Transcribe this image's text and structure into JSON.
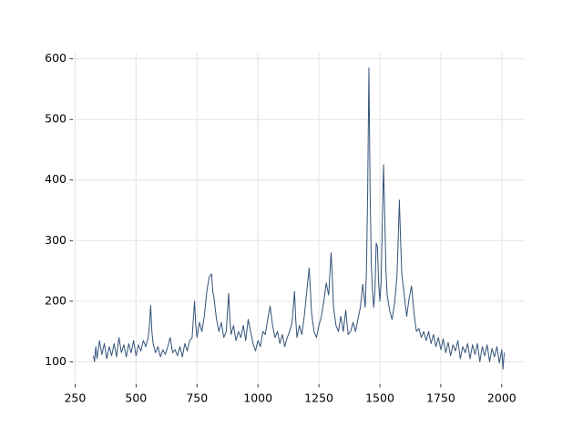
{
  "chart_data": {
    "type": "line",
    "x": [
      325,
      330,
      335,
      340,
      350,
      360,
      370,
      380,
      390,
      400,
      410,
      420,
      430,
      440,
      450,
      460,
      470,
      480,
      490,
      500,
      510,
      520,
      530,
      540,
      550,
      555,
      560,
      565,
      570,
      580,
      590,
      600,
      610,
      620,
      630,
      640,
      650,
      660,
      670,
      680,
      690,
      700,
      710,
      720,
      730,
      740,
      745,
      750,
      760,
      770,
      780,
      790,
      800,
      810,
      815,
      820,
      830,
      840,
      850,
      860,
      870,
      880,
      885,
      890,
      900,
      910,
      920,
      930,
      940,
      950,
      960,
      970,
      980,
      990,
      1000,
      1010,
      1020,
      1030,
      1040,
      1050,
      1060,
      1070,
      1080,
      1090,
      1100,
      1110,
      1120,
      1130,
      1140,
      1150,
      1155,
      1160,
      1170,
      1180,
      1190,
      1200,
      1210,
      1215,
      1220,
      1230,
      1240,
      1250,
      1260,
      1270,
      1280,
      1290,
      1300,
      1305,
      1310,
      1320,
      1330,
      1340,
      1350,
      1360,
      1370,
      1380,
      1390,
      1400,
      1410,
      1420,
      1430,
      1440,
      1445,
      1450,
      1455,
      1460,
      1465,
      1470,
      1475,
      1480,
      1485,
      1490,
      1495,
      1500,
      1505,
      1510,
      1515,
      1520,
      1525,
      1530,
      1540,
      1550,
      1560,
      1570,
      1575,
      1580,
      1585,
      1590,
      1600,
      1610,
      1620,
      1630,
      1640,
      1650,
      1660,
      1670,
      1680,
      1690,
      1700,
      1710,
      1720,
      1730,
      1740,
      1750,
      1760,
      1770,
      1780,
      1790,
      1800,
      1810,
      1820,
      1830,
      1840,
      1850,
      1860,
      1870,
      1880,
      1890,
      1900,
      1910,
      1920,
      1930,
      1940,
      1950,
      1960,
      1970,
      1980,
      1990,
      2000,
      2005,
      2010
    ],
    "series": [
      {
        "color": "#34537a",
        "values": [
          110,
          100,
          125,
          105,
          135,
          112,
          130,
          105,
          125,
          110,
          130,
          108,
          140,
          115,
          128,
          108,
          130,
          115,
          135,
          110,
          128,
          118,
          135,
          125,
          140,
          160,
          193,
          150,
          130,
          115,
          125,
          108,
          120,
          112,
          125,
          140,
          115,
          120,
          110,
          125,
          108,
          130,
          118,
          135,
          140,
          200,
          160,
          140,
          165,
          150,
          175,
          215,
          240,
          245,
          215,
          205,
          170,
          150,
          165,
          140,
          150,
          213,
          170,
          145,
          160,
          135,
          150,
          140,
          160,
          135,
          170,
          150,
          130,
          118,
          135,
          125,
          150,
          145,
          170,
          192,
          160,
          140,
          150,
          130,
          145,
          125,
          140,
          150,
          165,
          216,
          170,
          140,
          160,
          145,
          175,
          215,
          255,
          220,
          180,
          150,
          140,
          160,
          175,
          200,
          230,
          210,
          280,
          240,
          190,
          160,
          150,
          175,
          150,
          185,
          145,
          150,
          165,
          150,
          170,
          190,
          228,
          190,
          250,
          380,
          585,
          380,
          260,
          215,
          190,
          220,
          296,
          290,
          230,
          200,
          230,
          330,
          425,
          340,
          250,
          210,
          185,
          170,
          195,
          240,
          300,
          367,
          300,
          245,
          210,
          175,
          205,
          225,
          180,
          150,
          155,
          140,
          150,
          135,
          150,
          130,
          145,
          125,
          140,
          120,
          138,
          115,
          132,
          110,
          128,
          118,
          135,
          105,
          125,
          115,
          130,
          105,
          128,
          112,
          130,
          100,
          125,
          110,
          128,
          100,
          122,
          108,
          125,
          98,
          120,
          88,
          115
        ]
      }
    ],
    "xlim": [
      241,
      2094
    ],
    "ylim": [
      63,
      610
    ],
    "xticks": [
      250,
      500,
      750,
      1000,
      1250,
      1500,
      1750,
      2000
    ],
    "yticks": [
      100,
      200,
      300,
      400,
      500,
      600
    ],
    "grid": true
  }
}
